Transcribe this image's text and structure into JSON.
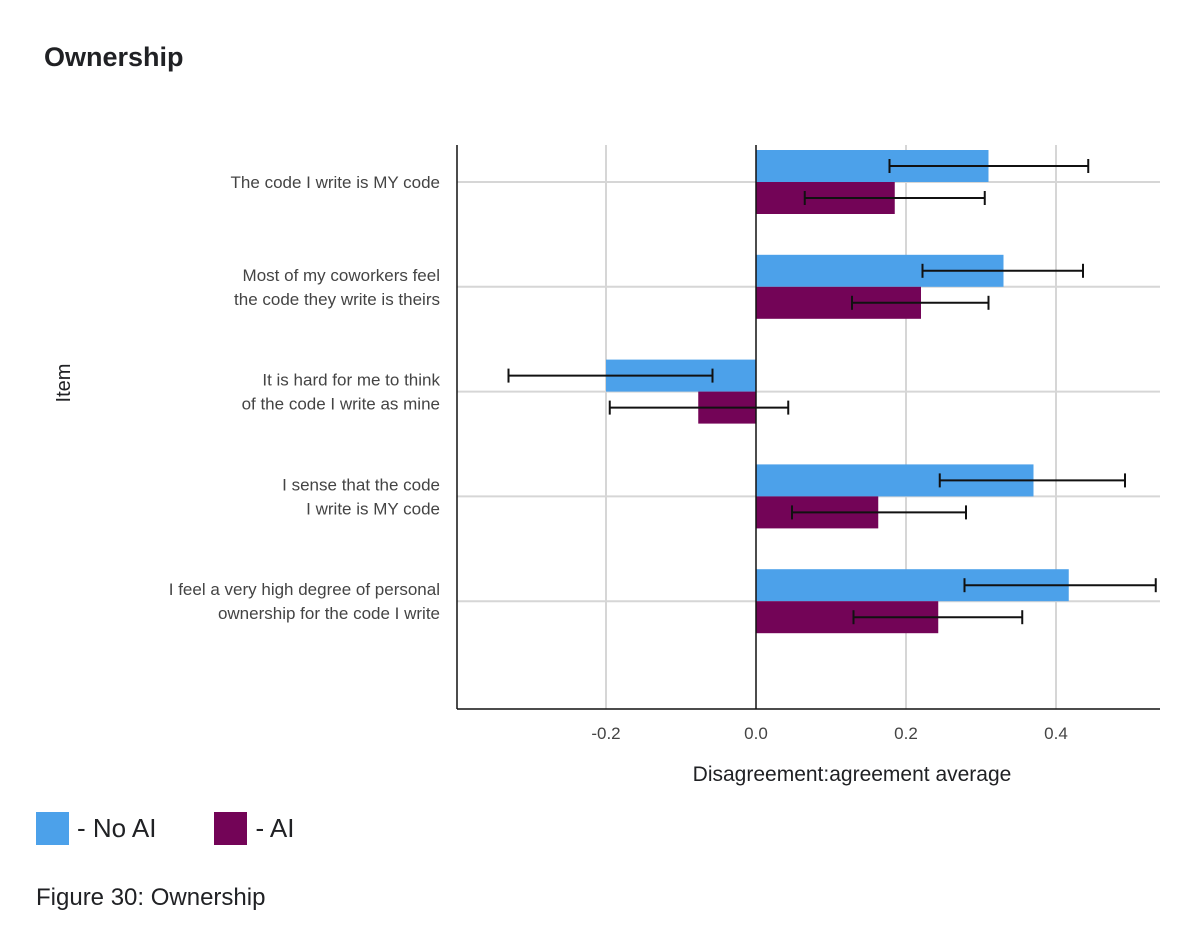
{
  "chart_data": {
    "type": "bar",
    "orientation": "horizontal",
    "title": "Ownership",
    "xlabel": "Disagreement:agreement average",
    "ylabel": "Item",
    "xlim": [
      -0.4,
      0.54
    ],
    "x_ticks": [
      -0.2,
      0.0,
      0.2,
      0.4
    ],
    "x_tick_labels": [
      "-0.2",
      "0.0",
      "0.2",
      "0.4"
    ],
    "grid": true,
    "categories": [
      [
        "The code I write is MY code"
      ],
      [
        "Most of my coworkers feel",
        "the code they write is theirs"
      ],
      [
        "It is hard for me to think",
        "of the code I write as mine"
      ],
      [
        "I sense that the code",
        "I write is MY code"
      ],
      [
        "I feel a very high degree of personal",
        "ownership for the code I write"
      ]
    ],
    "series": [
      {
        "name": "No AI",
        "color": "#4ca1ea",
        "values": [
          0.31,
          0.33,
          -0.2,
          0.37,
          0.417
        ],
        "error_low": [
          0.178,
          0.222,
          -0.33,
          0.245,
          0.278
        ],
        "error_high": [
          0.443,
          0.436,
          -0.058,
          0.492,
          0.533
        ]
      },
      {
        "name": "AI",
        "color": "#730457",
        "values": [
          0.185,
          0.22,
          -0.077,
          0.163,
          0.243
        ],
        "error_low": [
          0.065,
          0.128,
          -0.195,
          0.048,
          0.13
        ],
        "error_high": [
          0.305,
          0.31,
          0.043,
          0.28,
          0.355
        ]
      }
    ]
  },
  "legend": {
    "no_ai_label": "- No AI",
    "ai_label": "- AI"
  },
  "caption": "Figure 30: Ownership"
}
